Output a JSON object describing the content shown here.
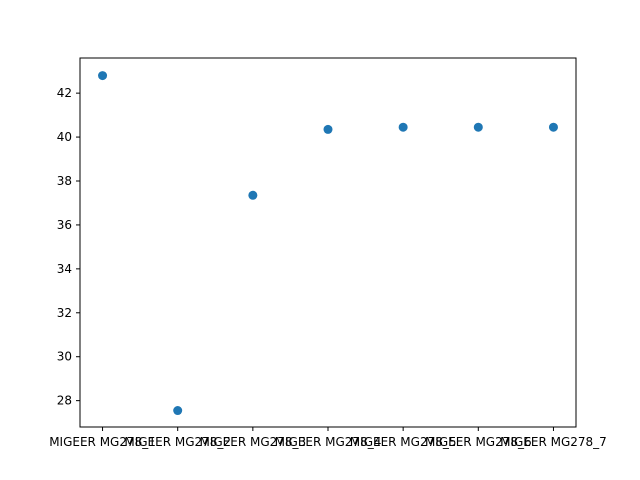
{
  "chart_data": {
    "type": "scatter",
    "title": "",
    "xlabel": "",
    "ylabel": "",
    "categories": [
      "MIGEER MG278_1",
      "MIGEER MG278_2",
      "MIGEER MG278_3",
      "MIGEER MG278_4",
      "MIGEER MG278_5",
      "MIGEER MG278_6",
      "MIGEER MG278_7"
    ],
    "values": [
      42.8,
      27.55,
      37.35,
      40.35,
      40.45,
      40.45,
      40.45
    ],
    "ylim": [
      26.8,
      43.6
    ],
    "yticks": [
      28,
      30,
      32,
      34,
      36,
      38,
      40,
      42
    ],
    "ytick_labels": [
      "28",
      "30",
      "32",
      "34",
      "36",
      "38",
      "40",
      "42"
    ],
    "grid": false,
    "legend": "none",
    "marker_color": "#1f77b4"
  }
}
